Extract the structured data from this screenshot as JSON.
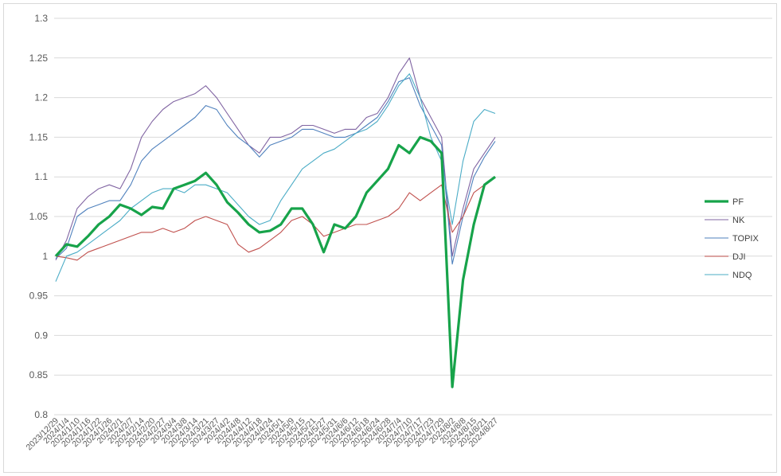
{
  "chart_data": {
    "type": "line",
    "title": "",
    "xlabel": "",
    "ylabel": "",
    "ylim": [
      0.8,
      1.3
    ],
    "yticks": [
      "0.8",
      "0.85",
      "0.9",
      "0.95",
      "1",
      "1.05",
      "1.1",
      "1.15",
      "1.2",
      "1.25",
      "1.3"
    ],
    "grid": "horizontal",
    "legend_position": "right",
    "x": [
      "2023/12/29",
      "2024/1/4",
      "2024/1/10",
      "2024/1/16",
      "2024/1/22",
      "2024/1/26",
      "2024/2/1",
      "2024/2/7",
      "2024/2/14",
      "2024/2/20",
      "2024/2/27",
      "2024/3/4",
      "2024/3/8",
      "2024/3/14",
      "2024/3/21",
      "2024/3/27",
      "2024/4/2",
      "2024/4/8",
      "2024/4/12",
      "2024/4/18",
      "2024/4/24",
      "2024/5/1",
      "2024/5/9",
      "2024/5/15",
      "2024/5/21",
      "2024/5/27",
      "2024/5/31",
      "2024/6/6",
      "2024/6/12",
      "2024/6/18",
      "2024/6/24",
      "2024/6/28",
      "2024/7/4",
      "2024/7/10",
      "2024/7/17",
      "2024/7/23",
      "2024/7/29",
      "2024/8/2",
      "2024/8/8",
      "2024/8/15",
      "2024/8/21",
      "2024/8/27"
    ],
    "series": [
      {
        "name": "PF",
        "color": "#17a34a",
        "width": 3.2,
        "values": [
          1.0,
          1.015,
          1.012,
          1.025,
          1.04,
          1.05,
          1.065,
          1.06,
          1.052,
          1.062,
          1.06,
          1.085,
          1.09,
          1.095,
          1.105,
          1.09,
          1.068,
          1.055,
          1.04,
          1.03,
          1.032,
          1.04,
          1.06,
          1.06,
          1.04,
          1.005,
          1.04,
          1.035,
          1.05,
          1.08,
          1.095,
          1.11,
          1.14,
          1.13,
          1.15,
          1.145,
          1.13,
          0.835,
          0.97,
          1.04,
          1.09,
          1.1
        ]
      },
      {
        "name": "NK",
        "color": "#8064a2",
        "width": 1.1,
        "values": [
          0.995,
          1.02,
          1.06,
          1.075,
          1.085,
          1.09,
          1.085,
          1.11,
          1.15,
          1.17,
          1.185,
          1.195,
          1.2,
          1.205,
          1.215,
          1.2,
          1.18,
          1.16,
          1.14,
          1.13,
          1.15,
          1.15,
          1.155,
          1.165,
          1.165,
          1.16,
          1.155,
          1.16,
          1.16,
          1.175,
          1.18,
          1.2,
          1.23,
          1.25,
          1.2,
          1.175,
          1.15,
          1.0,
          1.06,
          1.11,
          1.13,
          1.15
        ]
      },
      {
        "name": "TOPIX",
        "color": "#4f81bd",
        "width": 1.1,
        "values": [
          0.997,
          1.01,
          1.05,
          1.06,
          1.065,
          1.07,
          1.07,
          1.09,
          1.12,
          1.135,
          1.145,
          1.155,
          1.165,
          1.175,
          1.19,
          1.185,
          1.165,
          1.15,
          1.14,
          1.125,
          1.14,
          1.145,
          1.15,
          1.16,
          1.16,
          1.155,
          1.15,
          1.15,
          1.155,
          1.165,
          1.175,
          1.195,
          1.22,
          1.225,
          1.19,
          1.165,
          1.14,
          0.99,
          1.05,
          1.1,
          1.125,
          1.145
        ]
      },
      {
        "name": "DJI",
        "color": "#c0504d",
        "width": 1.1,
        "values": [
          1.0,
          0.998,
          0.995,
          1.005,
          1.01,
          1.015,
          1.02,
          1.025,
          1.03,
          1.03,
          1.035,
          1.03,
          1.035,
          1.045,
          1.05,
          1.045,
          1.04,
          1.015,
          1.005,
          1.01,
          1.02,
          1.03,
          1.045,
          1.05,
          1.04,
          1.025,
          1.03,
          1.035,
          1.04,
          1.04,
          1.045,
          1.05,
          1.06,
          1.08,
          1.07,
          1.08,
          1.09,
          1.03,
          1.05,
          1.08,
          1.09,
          1.1
        ]
      },
      {
        "name": "NDQ",
        "color": "#4bacc6",
        "width": 1.1,
        "values": [
          0.968,
          1.0,
          1.005,
          1.015,
          1.025,
          1.035,
          1.045,
          1.06,
          1.07,
          1.08,
          1.085,
          1.085,
          1.08,
          1.09,
          1.09,
          1.085,
          1.08,
          1.065,
          1.05,
          1.04,
          1.045,
          1.07,
          1.09,
          1.11,
          1.12,
          1.13,
          1.135,
          1.145,
          1.155,
          1.16,
          1.17,
          1.19,
          1.215,
          1.23,
          1.2,
          1.15,
          1.12,
          1.04,
          1.12,
          1.17,
          1.185,
          1.18
        ]
      }
    ]
  }
}
